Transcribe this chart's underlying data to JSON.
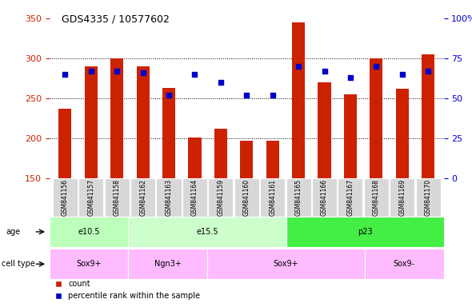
{
  "title": "GDS4335 / 10577602",
  "samples": [
    "GSM841156",
    "GSM841157",
    "GSM841158",
    "GSM841162",
    "GSM841163",
    "GSM841164",
    "GSM841159",
    "GSM841160",
    "GSM841161",
    "GSM841165",
    "GSM841166",
    "GSM841167",
    "GSM841168",
    "GSM841169",
    "GSM841170"
  ],
  "counts": [
    237,
    290,
    300,
    290,
    263,
    201,
    212,
    197,
    197,
    345,
    270,
    255,
    300,
    262,
    305
  ],
  "pct_ranks": [
    65,
    67,
    67,
    66,
    52,
    65,
    60,
    52,
    52,
    70,
    67,
    63,
    70,
    65,
    67
  ],
  "ylim_left": [
    150,
    350
  ],
  "ylim_right": [
    0,
    100
  ],
  "yticks_left": [
    150,
    200,
    250,
    300,
    350
  ],
  "yticks_right": [
    0,
    25,
    50,
    75,
    100
  ],
  "bar_color": "#cc2200",
  "dot_color": "#0000cc",
  "age_groups": [
    {
      "label": "e10.5",
      "start": 0,
      "end": 3,
      "color": "#bbffbb"
    },
    {
      "label": "e15.5",
      "start": 3,
      "end": 9,
      "color": "#ccffcc"
    },
    {
      "label": "p23",
      "start": 9,
      "end": 15,
      "color": "#44ee44"
    }
  ],
  "cell_type_groups": [
    {
      "label": "Sox9+",
      "start": 0,
      "end": 3
    },
    {
      "label": "Ngn3+",
      "start": 3,
      "end": 6
    },
    {
      "label": "Sox9+",
      "start": 6,
      "end": 12
    },
    {
      "label": "Sox9-",
      "start": 12,
      "end": 15
    }
  ],
  "age_row_label": "age",
  "cell_type_row_label": "cell type",
  "legend_count_label": "count",
  "legend_pct_label": "percentile rank within the sample",
  "tick_color_left": "#cc2200",
  "tick_color_right": "#0000cc",
  "bg_color": "#ffffff",
  "cell_color": "#ffbbff"
}
